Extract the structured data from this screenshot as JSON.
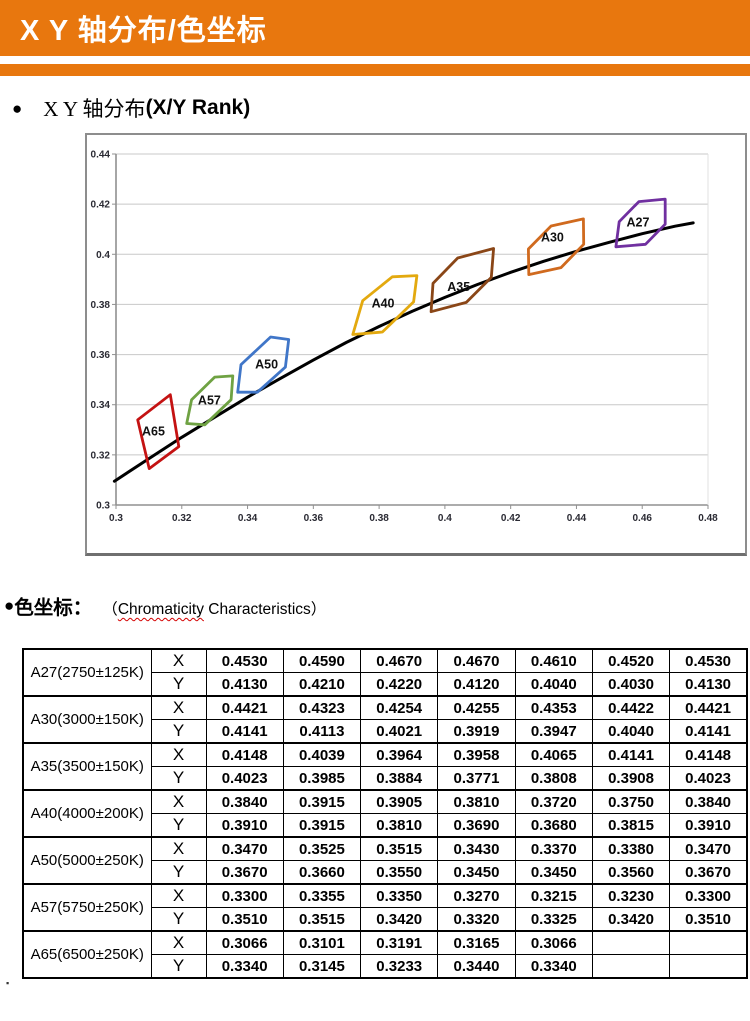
{
  "colors": {
    "banner_orange": "#E8770E",
    "chart_grid": "#c8c8c8",
    "chart_axis": "#909090",
    "curve_black": "#000000"
  },
  "header": {
    "title": "X Y 轴分布/色坐标"
  },
  "section_xy": {
    "bullet": "●",
    "title_cn": "X Y 轴分布",
    "title_en": "(X/Y Rank)"
  },
  "chart_data": {
    "type": "scatter",
    "title": "",
    "xlabel": "",
    "ylabel": "",
    "xlim": [
      0.3,
      0.48
    ],
    "ylim": [
      0.3,
      0.44
    ],
    "grid": "horizontal",
    "x_ticks": [
      "0.3",
      "0.32",
      "0.34",
      "0.36",
      "0.38",
      "0.4",
      "0.42",
      "0.44",
      "0.46",
      "0.48"
    ],
    "y_ticks": [
      "0.3",
      "0.32",
      "0.34",
      "0.36",
      "0.38",
      "0.4",
      "0.42",
      "0.44"
    ],
    "locus_curve": {
      "name": "blackbody-locus",
      "color": "#000000",
      "points": [
        [
          0.2995,
          0.3095
        ],
        [
          0.31,
          0.3185
        ],
        [
          0.32,
          0.327
        ],
        [
          0.33,
          0.335
        ],
        [
          0.34,
          0.343
        ],
        [
          0.35,
          0.3505
        ],
        [
          0.36,
          0.3578
        ],
        [
          0.37,
          0.3648
        ],
        [
          0.38,
          0.3712
        ],
        [
          0.39,
          0.3772
        ],
        [
          0.4,
          0.3828
        ],
        [
          0.41,
          0.388
        ],
        [
          0.42,
          0.3928
        ],
        [
          0.43,
          0.3972
        ],
        [
          0.44,
          0.4012
        ],
        [
          0.45,
          0.4048
        ],
        [
          0.46,
          0.4082
        ],
        [
          0.47,
          0.4112
        ],
        [
          0.4755,
          0.4125
        ]
      ]
    },
    "bins": [
      {
        "name": "A65",
        "color": "#C41212",
        "label_pos": [
          0.3114,
          0.3296
        ],
        "points": [
          [
            0.3066,
            0.334
          ],
          [
            0.3101,
            0.3145
          ],
          [
            0.3191,
            0.3233
          ],
          [
            0.3165,
            0.344
          ]
        ]
      },
      {
        "name": "A57",
        "color": "#6FA243",
        "label_pos": [
          0.3284,
          0.3418
        ],
        "points": [
          [
            0.33,
            0.351
          ],
          [
            0.3355,
            0.3515
          ],
          [
            0.335,
            0.342
          ],
          [
            0.327,
            0.332
          ],
          [
            0.3215,
            0.3325
          ],
          [
            0.323,
            0.342
          ]
        ]
      },
      {
        "name": "A50",
        "color": "#4076C8",
        "label_pos": [
          0.3458,
          0.3562
        ],
        "points": [
          [
            0.347,
            0.367
          ],
          [
            0.3525,
            0.366
          ],
          [
            0.3515,
            0.355
          ],
          [
            0.343,
            0.345
          ],
          [
            0.337,
            0.345
          ],
          [
            0.338,
            0.356
          ]
        ]
      },
      {
        "name": "A40",
        "color": "#E3A90F",
        "label_pos": [
          0.3812,
          0.3806
        ],
        "points": [
          [
            0.384,
            0.391
          ],
          [
            0.3915,
            0.3915
          ],
          [
            0.3905,
            0.381
          ],
          [
            0.381,
            0.369
          ],
          [
            0.372,
            0.368
          ],
          [
            0.375,
            0.3815
          ]
        ]
      },
      {
        "name": "A35",
        "color": "#8A4617",
        "label_pos": [
          0.4042,
          0.3872
        ],
        "points": [
          [
            0.4148,
            0.4023
          ],
          [
            0.4039,
            0.3985
          ],
          [
            0.3964,
            0.3884
          ],
          [
            0.3958,
            0.3771
          ],
          [
            0.4065,
            0.3808
          ],
          [
            0.4141,
            0.3908
          ]
        ]
      },
      {
        "name": "A30",
        "color": "#D06A1E",
        "label_pos": [
          0.4327,
          0.4068
        ],
        "points": [
          [
            0.4421,
            0.4141
          ],
          [
            0.4323,
            0.4113
          ],
          [
            0.4254,
            0.4021
          ],
          [
            0.4255,
            0.3919
          ],
          [
            0.4353,
            0.3947
          ],
          [
            0.4422,
            0.404
          ]
        ]
      },
      {
        "name": "A27",
        "color": "#7030A0",
        "label_pos": [
          0.4587,
          0.4128
        ],
        "points": [
          [
            0.453,
            0.413
          ],
          [
            0.459,
            0.421
          ],
          [
            0.467,
            0.422
          ],
          [
            0.467,
            0.412
          ],
          [
            0.461,
            0.404
          ],
          [
            0.452,
            0.403
          ]
        ]
      }
    ]
  },
  "section_chroma": {
    "bullet": "●",
    "title_cn": "色坐标：",
    "paren_open": "（",
    "word_underlined": "Chromaticity",
    "rest": " Characteristics",
    "paren_close": "）"
  },
  "table": {
    "row_header_x": "X",
    "row_header_y": "Y",
    "groups": [
      {
        "label": "A27(2750±125K)",
        "x": [
          "0.4530",
          "0.4590",
          "0.4670",
          "0.4670",
          "0.4610",
          "0.4520",
          "0.4530"
        ],
        "y": [
          "0.4130",
          "0.4210",
          "0.4220",
          "0.4120",
          "0.4040",
          "0.4030",
          "0.4130"
        ]
      },
      {
        "label": "A30(3000±150K)",
        "x": [
          "0.4421",
          "0.4323",
          "0.4254",
          "0.4255",
          "0.4353",
          "0.4422",
          "0.4421"
        ],
        "y": [
          "0.4141",
          "0.4113",
          "0.4021",
          "0.3919",
          "0.3947",
          "0.4040",
          "0.4141"
        ]
      },
      {
        "label": "A35(3500±150K)",
        "x": [
          "0.4148",
          "0.4039",
          "0.3964",
          "0.3958",
          "0.4065",
          "0.4141",
          "0.4148"
        ],
        "y": [
          "0.4023",
          "0.3985",
          "0.3884",
          "0.3771",
          "0.3808",
          "0.3908",
          "0.4023"
        ]
      },
      {
        "label": "A40(4000±200K)",
        "x": [
          "0.3840",
          "0.3915",
          "0.3905",
          "0.3810",
          "0.3720",
          "0.3750",
          "0.3840"
        ],
        "y": [
          "0.3910",
          "0.3915",
          "0.3810",
          "0.3690",
          "0.3680",
          "0.3815",
          "0.3910"
        ]
      },
      {
        "label": "A50(5000±250K)",
        "x": [
          "0.3470",
          "0.3525",
          "0.3515",
          "0.3430",
          "0.3370",
          "0.3380",
          "0.3470"
        ],
        "y": [
          "0.3670",
          "0.3660",
          "0.3550",
          "0.3450",
          "0.3450",
          "0.3560",
          "0.3670"
        ]
      },
      {
        "label": "A57(5750±250K)",
        "x": [
          "0.3300",
          "0.3355",
          "0.3350",
          "0.3270",
          "0.3215",
          "0.3230",
          "0.3300"
        ],
        "y": [
          "0.3510",
          "0.3515",
          "0.3420",
          "0.3320",
          "0.3325",
          "0.3420",
          "0.3510"
        ]
      },
      {
        "label": "A65(6500±250K)",
        "x": [
          "0.3066",
          "0.3101",
          "0.3191",
          "0.3165",
          "0.3066",
          "",
          ""
        ],
        "y": [
          "0.3340",
          "0.3145",
          "0.3233",
          "0.3440",
          "0.3340",
          "",
          ""
        ]
      }
    ]
  },
  "stray_mark": "▪"
}
